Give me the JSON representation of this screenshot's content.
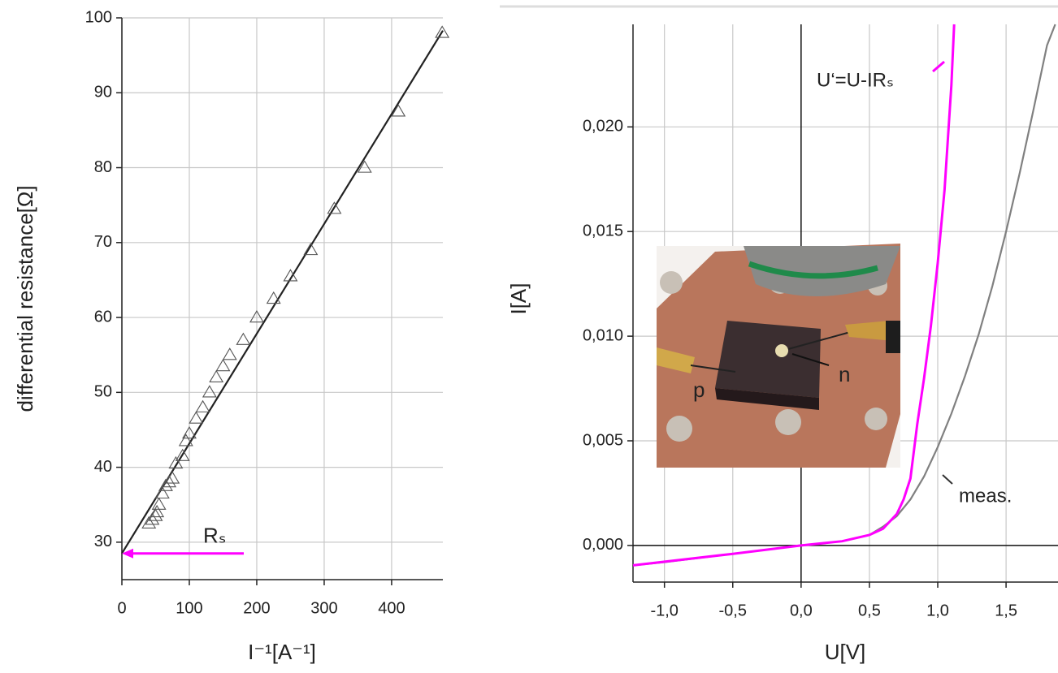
{
  "chart_data": [
    {
      "type": "scatter",
      "xlabel": "I⁻¹[A⁻¹]",
      "ylabel": "differential resistance[Ω]",
      "xlim": [
        0,
        476
      ],
      "ylim": [
        25,
        100
      ],
      "xticks": [
        0,
        100,
        200,
        300,
        400
      ],
      "yticks": [
        30,
        40,
        50,
        60,
        70,
        80,
        90,
        100
      ],
      "grid": true,
      "series": [
        {
          "color": "#555555",
          "marker": "triangle",
          "x": [
            40,
            45,
            50,
            52,
            55,
            60,
            65,
            70,
            75,
            80,
            90,
            95,
            100,
            110,
            120,
            130,
            140,
            150,
            160,
            180,
            200,
            225,
            250,
            280,
            315,
            360,
            410,
            475
          ],
          "y": [
            32.5,
            33,
            33.5,
            34,
            35,
            36.5,
            37.5,
            38,
            38.5,
            40.5,
            41.5,
            43.5,
            44.5,
            46.5,
            48,
            50,
            52,
            53.5,
            55,
            57,
            60,
            62.5,
            65.5,
            69,
            74.5,
            80,
            87.5,
            98
          ]
        }
      ],
      "fit": {
        "color": "#222222",
        "x": [
          0,
          476
        ],
        "y": [
          28.5,
          98.3
        ]
      },
      "annotation": {
        "text": "Rₛ",
        "color": "#ff00ff"
      }
    },
    {
      "type": "line",
      "xlabel": "U[V]",
      "ylabel": "I[A]",
      "xlim": [
        -1.23,
        1.88
      ],
      "ylim": [
        -0.00175,
        0.0249
      ],
      "xticks": [
        {
          "value": -1.0,
          "label": "-1,0"
        },
        {
          "value": -0.5,
          "label": "-0,5"
        },
        {
          "value": 0.0,
          "label": "0,0"
        },
        {
          "value": 0.5,
          "label": "0,5"
        },
        {
          "value": 1.0,
          "label": "1,0"
        },
        {
          "value": 1.5,
          "label": "1,5"
        }
      ],
      "yticks": [
        {
          "value": 0.0,
          "label": "0,000"
        },
        {
          "value": 0.005,
          "label": "0,005"
        },
        {
          "value": 0.01,
          "label": "0,010"
        },
        {
          "value": 0.015,
          "label": "0,015"
        },
        {
          "value": 0.02,
          "label": "0,020"
        }
      ],
      "grid": true,
      "series": [
        {
          "color": "#808080",
          "x": [
            -1.23,
            -1.0,
            -0.5,
            0,
            0.3,
            0.5,
            0.6,
            0.7,
            0.8,
            0.9,
            1.0,
            1.1,
            1.2,
            1.3,
            1.4,
            1.5,
            1.6,
            1.7,
            1.8,
            1.86
          ],
          "y": [
            -0.00095,
            -0.0008,
            -0.0004,
            0,
            0.0002,
            0.0005,
            0.0009,
            0.0014,
            0.0022,
            0.0033,
            0.0047,
            0.0063,
            0.0081,
            0.0101,
            0.0124,
            0.015,
            0.0178,
            0.0208,
            0.0239,
            0.0249
          ]
        },
        {
          "color": "#ff00ff",
          "x": [
            -1.23,
            -0.5,
            0,
            0.3,
            0.5,
            0.6,
            0.7,
            0.75,
            0.8,
            0.85,
            0.9,
            0.95,
            1.0,
            1.05,
            1.1,
            1.12
          ],
          "y": [
            -0.00095,
            -0.0004,
            0,
            0.0002,
            0.0005,
            0.0008,
            0.0015,
            0.0022,
            0.0032,
            0.0058,
            0.008,
            0.0105,
            0.0135,
            0.017,
            0.022,
            0.0249
          ]
        }
      ],
      "annotations": [
        "meas.",
        "U‘=U-IRₛ"
      ],
      "inset_labels": [
        "p",
        "n"
      ]
    }
  ]
}
